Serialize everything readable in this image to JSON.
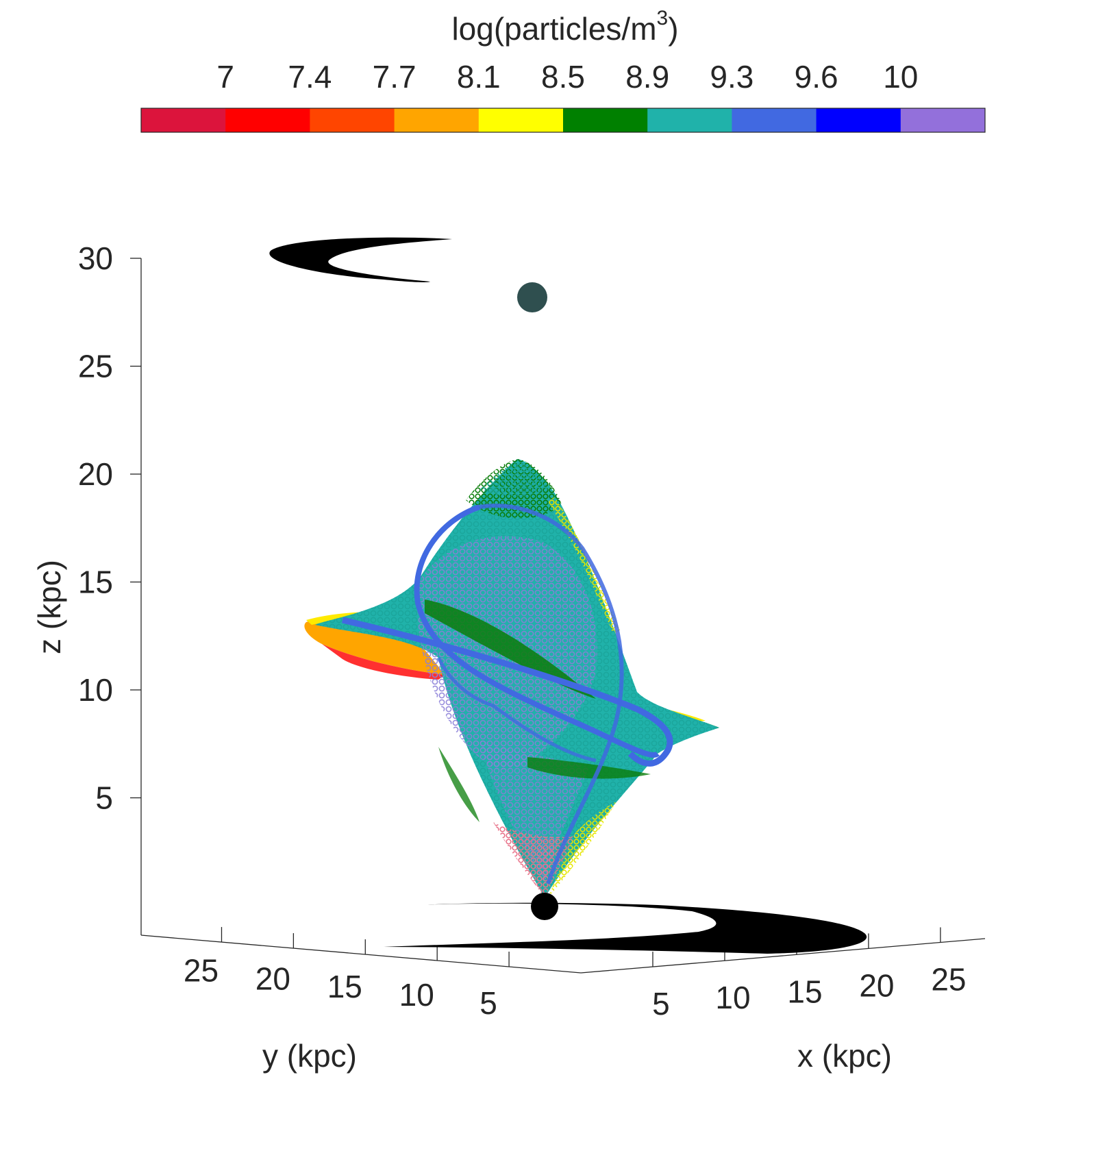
{
  "chart_data": {
    "type": "scatter",
    "projection": "3d",
    "title": "",
    "colorbar": {
      "title": "log(particles/m",
      "title_superscript": "3",
      "title_suffix": ")",
      "placement": "top",
      "tick_labels": [
        "7",
        "7.4",
        "7.7",
        "8.1",
        "8.5",
        "8.9",
        "9.3",
        "9.6",
        "10"
      ],
      "colors": [
        "#dc143c",
        "#ff0000",
        "#ff4500",
        "#ffa500",
        "#ffff00",
        "#008000",
        "#20b2aa",
        "#4169e1",
        "#0000ff",
        "#9370db"
      ]
    },
    "axes": {
      "x": {
        "label": "x (kpc)",
        "ticks": [
          5,
          10,
          15,
          20,
          25
        ],
        "range": [
          0,
          28
        ]
      },
      "y": {
        "label": "y (kpc)",
        "ticks": [
          5,
          10,
          15,
          20,
          25
        ],
        "range": [
          0,
          28
        ]
      },
      "z": {
        "label": "z (kpc)",
        "ticks": [
          5,
          10,
          15,
          20,
          25,
          30
        ],
        "range": [
          0,
          32
        ]
      }
    },
    "markers": [
      {
        "kind": "sphere",
        "color": "#2f4f4f",
        "x": 0,
        "y": 0,
        "z": 30.3
      },
      {
        "kind": "sphere",
        "color": "#000000",
        "x": 0,
        "y": 0,
        "z": 2
      }
    ],
    "shadows": [
      {
        "kind": "projected-shadow",
        "color": "#000000",
        "where": "top"
      },
      {
        "kind": "projected-shadow",
        "color": "#000000",
        "where": "bottom"
      }
    ],
    "surface": {
      "kind": "twisted particle sheet",
      "z_range": [
        2,
        22.7
      ],
      "dominant_colors": [
        "#20b2aa",
        "#4169e1",
        "#9370db",
        "#008000",
        "#ffff00",
        "#ffa500",
        "#ff0000"
      ]
    }
  }
}
